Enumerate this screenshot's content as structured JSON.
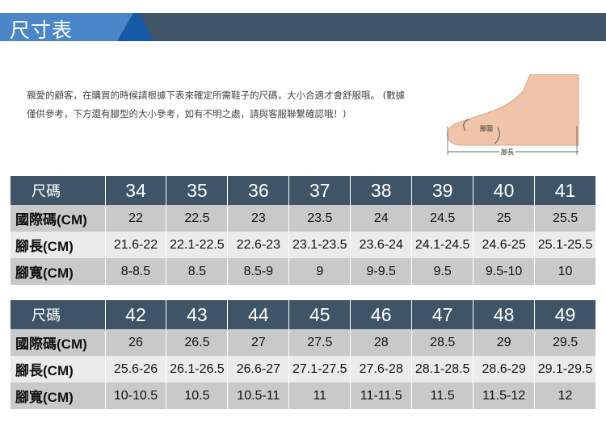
{
  "header": {
    "title": "尺寸表",
    "colors": {
      "light": "#4a86c8",
      "accent": "#1659a6",
      "dark": "#3f5466"
    }
  },
  "intro": "親愛的顧客，在購買的時候請根據下表來確定所需鞋子的尺碼，大小合適才會舒服哦。 (數據僅供參考，下方還有腳型的大小參考，如有不明之處，請與客服聯繫確認哦！)",
  "foot_image": {
    "label_girth": "腳圍",
    "label_length": "腳長"
  },
  "tables": [
    {
      "rows": [
        {
          "label": "尺碼",
          "values": [
            "34",
            "35",
            "36",
            "37",
            "38",
            "39",
            "40",
            "41"
          ]
        },
        {
          "label": "國際碼(CM)",
          "values": [
            "22",
            "22.5",
            "23",
            "23.5",
            "24",
            "24.5",
            "25",
            "25.5"
          ]
        },
        {
          "label": "腳長(CM)",
          "values": [
            "21.6-22",
            "22.1-22.5",
            "22.6-23",
            "23.1-23.5",
            "23.6-24",
            "24.1-24.5",
            "24.6-25",
            "25.1-25.5"
          ]
        },
        {
          "label": "腳寬(CM)",
          "values": [
            "8-8.5",
            "8.5",
            "8.5-9",
            "9",
            "9-9.5",
            "9.5",
            "9.5-10",
            "10"
          ]
        }
      ]
    },
    {
      "rows": [
        {
          "label": "尺碼",
          "values": [
            "42",
            "43",
            "44",
            "45",
            "46",
            "47",
            "48",
            "49"
          ]
        },
        {
          "label": "國際碼(CM)",
          "values": [
            "26",
            "26.5",
            "27",
            "27.5",
            "28",
            "28.5",
            "29",
            "29.5"
          ]
        },
        {
          "label": "腳長(CM)",
          "values": [
            "25.6-26",
            "26.1-26.5",
            "26.6-27",
            "27.1-27.5",
            "27.6-28",
            "28.1-28.5",
            "28.6-29",
            "29.1-29.5"
          ]
        },
        {
          "label": "腳寬(CM)",
          "values": [
            "10-10.5",
            "10.5",
            "10.5-11",
            "11",
            "11-11.5",
            "11.5",
            "11.5-12",
            "12"
          ]
        }
      ]
    }
  ]
}
